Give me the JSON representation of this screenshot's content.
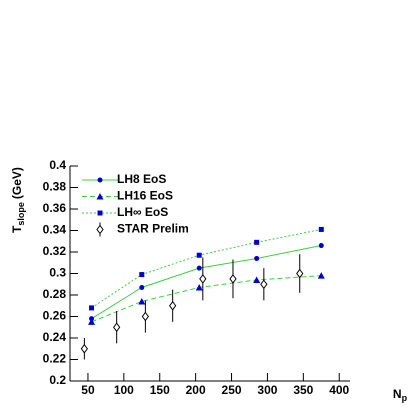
{
  "chart_data": {
    "type": "line",
    "xlabel": {
      "main": "N",
      "sub": "p"
    },
    "ylabel": {
      "main": "T",
      "sub": "slope",
      "rest": "(GeV)"
    },
    "xlim": [
      25,
      415
    ],
    "ylim": [
      0.2,
      0.4
    ],
    "xticks": [
      50,
      100,
      150,
      200,
      250,
      300,
      350,
      400
    ],
    "yticks": [
      0.2,
      0.22,
      0.24,
      0.26,
      0.28,
      0.3,
      0.32,
      0.34,
      0.36,
      0.38,
      0.4
    ],
    "series": [
      {
        "name": "LH8 EoS",
        "marker": "circle",
        "color": "#0000cc",
        "line_color": "#44cc44",
        "line_style": "solid",
        "x": [
          55,
          125,
          205,
          285,
          375
        ],
        "values": [
          0.258,
          0.287,
          0.305,
          0.314,
          0.326
        ]
      },
      {
        "name": "LH16 EoS",
        "marker": "triangle",
        "color": "#0000cc",
        "line_color": "#44cc44",
        "line_style": "dashed",
        "x": [
          55,
          125,
          205,
          285,
          375
        ],
        "values": [
          0.255,
          0.274,
          0.287,
          0.294,
          0.298
        ]
      },
      {
        "name": "LH∞ EoS",
        "marker": "square",
        "color": "#0000cc",
        "line_color": "#44cc44",
        "line_style": "dotted",
        "x": [
          55,
          125,
          205,
          285,
          375
        ],
        "values": [
          0.268,
          0.299,
          0.317,
          0.329,
          0.341
        ]
      },
      {
        "name": "STAR Prelim",
        "marker": "open-diamond",
        "color": "#000000",
        "x": [
          45,
          90,
          130,
          168,
          210,
          252,
          295,
          345
        ],
        "values": [
          0.23,
          0.25,
          0.26,
          0.27,
          0.295,
          0.295,
          0.29,
          0.3
        ],
        "errors": [
          0.01,
          0.015,
          0.015,
          0.015,
          0.02,
          0.018,
          0.015,
          0.018
        ]
      }
    ]
  }
}
